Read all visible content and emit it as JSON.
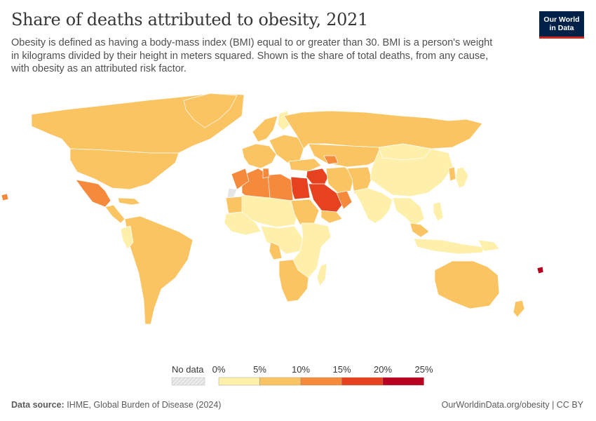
{
  "title": "Share of deaths attributed to obesity, 2021",
  "subtitle": "Obesity is defined as having a body-mass index (BMI) equal to or greater than 30. BMI is a person's weight in kilograms divided by their height in meters squared. Shown is the share of total deaths, from any cause, with obesity as an attributed risk factor.",
  "logo": {
    "line1": "Our World",
    "line2": "in Data"
  },
  "legend": {
    "no_data_label": "No data",
    "ticks": [
      "0%",
      "5%",
      "10%",
      "15%",
      "20%",
      "25%"
    ],
    "bin_colors": [
      "#feefaa",
      "#fbc462",
      "#f58a3c",
      "#e6421f",
      "#b8001f"
    ],
    "no_data_color": "#e6e6e6"
  },
  "footer": {
    "source_label": "Data source:",
    "source_text": "IHME, Global Burden of Disease (2024)",
    "link": "OurWorldinData.org/obesity | CC BY"
  },
  "chart_data": {
    "type": "choropleth",
    "year": 2021,
    "unit": "%",
    "bins": [
      0,
      5,
      10,
      15,
      20,
      25
    ],
    "regions": [
      {
        "name": "Canada",
        "bin": 1
      },
      {
        "name": "United States",
        "bin": 1
      },
      {
        "name": "Greenland",
        "bin": 1
      },
      {
        "name": "Mexico",
        "bin": 2
      },
      {
        "name": "Central America",
        "bin": 1
      },
      {
        "name": "Caribbean",
        "bin": 1
      },
      {
        "name": "South America",
        "bin": 1
      },
      {
        "name": "Ecuador",
        "bin": 0
      },
      {
        "name": "Northern Europe",
        "bin": 1
      },
      {
        "name": "Western Europe",
        "bin": 1
      },
      {
        "name": "Eastern Europe",
        "bin": 1
      },
      {
        "name": "Finland",
        "bin": 0
      },
      {
        "name": "Russia",
        "bin": 1
      },
      {
        "name": "Central Asia",
        "bin": 1
      },
      {
        "name": "Caucasus",
        "bin": 2
      },
      {
        "name": "Turkey",
        "bin": 1
      },
      {
        "name": "Iraq & Syria",
        "bin": 3
      },
      {
        "name": "Iran",
        "bin": 1
      },
      {
        "name": "Afghanistan & Pakistan",
        "bin": 1
      },
      {
        "name": "Saudi Arabia",
        "bin": 3
      },
      {
        "name": "Gulf states",
        "bin": 2
      },
      {
        "name": "Yemen",
        "bin": 1
      },
      {
        "name": "Egypt",
        "bin": 3
      },
      {
        "name": "Libya",
        "bin": 2
      },
      {
        "name": "Algeria",
        "bin": 2
      },
      {
        "name": "Morocco",
        "bin": 2
      },
      {
        "name": "Tunisia",
        "bin": 2
      },
      {
        "name": "Western Sahara",
        "bin": -1
      },
      {
        "name": "Sahel",
        "bin": 0
      },
      {
        "name": "Sudan",
        "bin": 1
      },
      {
        "name": "Mauritania",
        "bin": 1
      },
      {
        "name": "West Africa",
        "bin": 0
      },
      {
        "name": "Central Africa",
        "bin": 0
      },
      {
        "name": "Gabon & Congo",
        "bin": 1
      },
      {
        "name": "East Africa",
        "bin": 0
      },
      {
        "name": "Southern Africa",
        "bin": 1
      },
      {
        "name": "Madagascar",
        "bin": 0
      },
      {
        "name": "India & South Asia",
        "bin": 0
      },
      {
        "name": "China",
        "bin": 0
      },
      {
        "name": "Mongolia",
        "bin": 0
      },
      {
        "name": "Korea",
        "bin": 1
      },
      {
        "name": "Japan",
        "bin": 0
      },
      {
        "name": "Southeast Asia",
        "bin": 0
      },
      {
        "name": "Malaysia",
        "bin": 1
      },
      {
        "name": "Indonesia",
        "bin": 0
      },
      {
        "name": "Philippines",
        "bin": 0
      },
      {
        "name": "Papua New Guinea",
        "bin": 0
      },
      {
        "name": "Australia",
        "bin": 1
      },
      {
        "name": "New Zealand",
        "bin": 1
      },
      {
        "name": "Fiji",
        "bin": 4
      },
      {
        "name": "Hawaii",
        "bin": 2
      }
    ]
  }
}
